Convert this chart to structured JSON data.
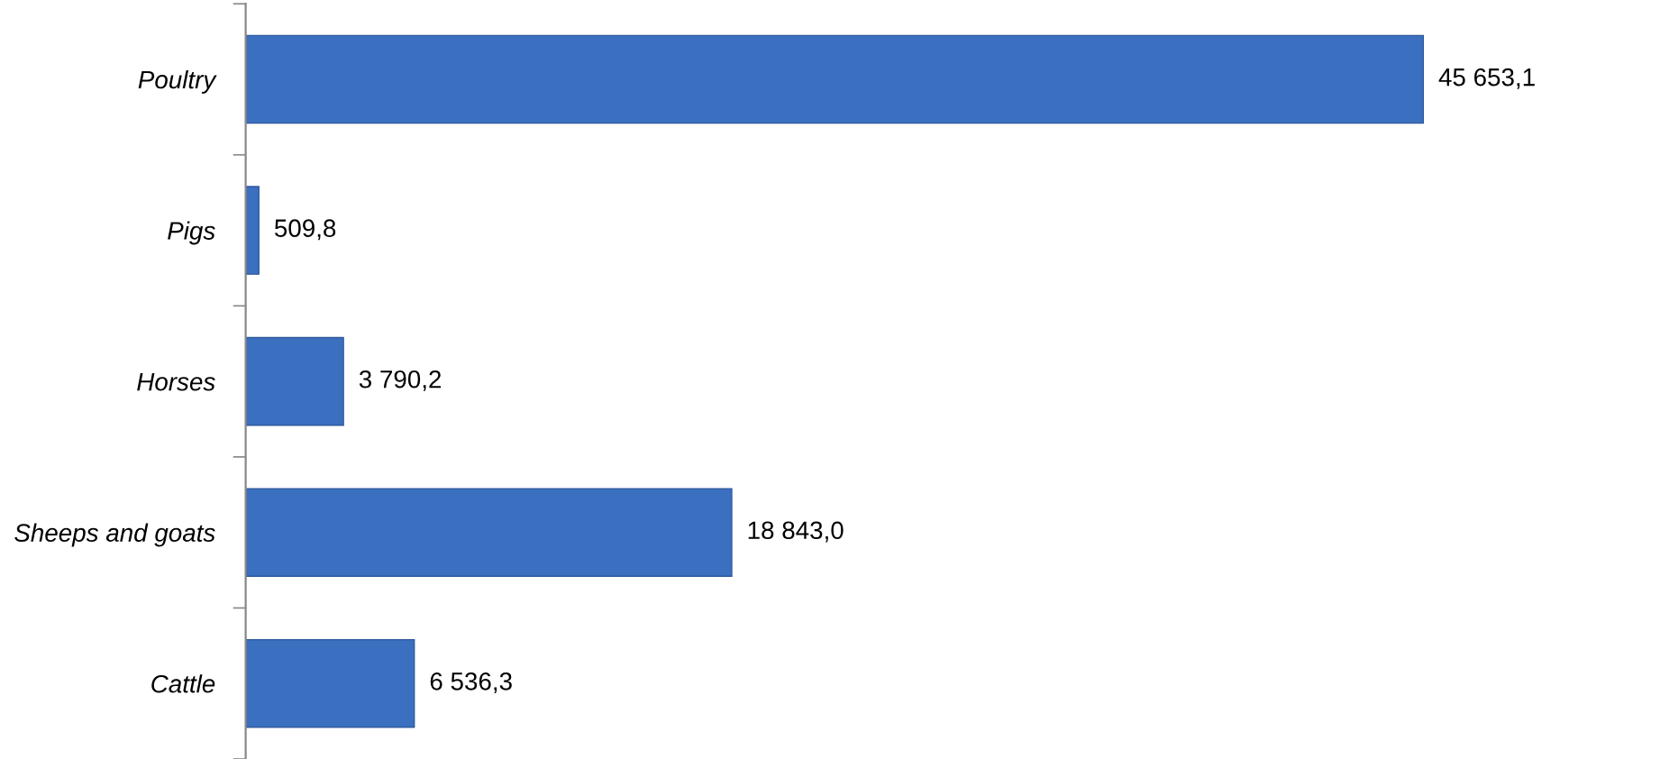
{
  "chart_data": {
    "type": "bar",
    "orientation": "horizontal",
    "categories": [
      "Poultry",
      "Pigs",
      "Horses",
      "Sheeps and goats",
      "Cattle"
    ],
    "values": [
      45653.1,
      509.8,
      3790.2,
      18843.0,
      6536.3
    ],
    "value_labels": [
      "45 653,1",
      "509,8",
      "3 790,2",
      "18 843,0",
      "6 536,3"
    ],
    "color": "#3b6fbf",
    "grid": false
  }
}
